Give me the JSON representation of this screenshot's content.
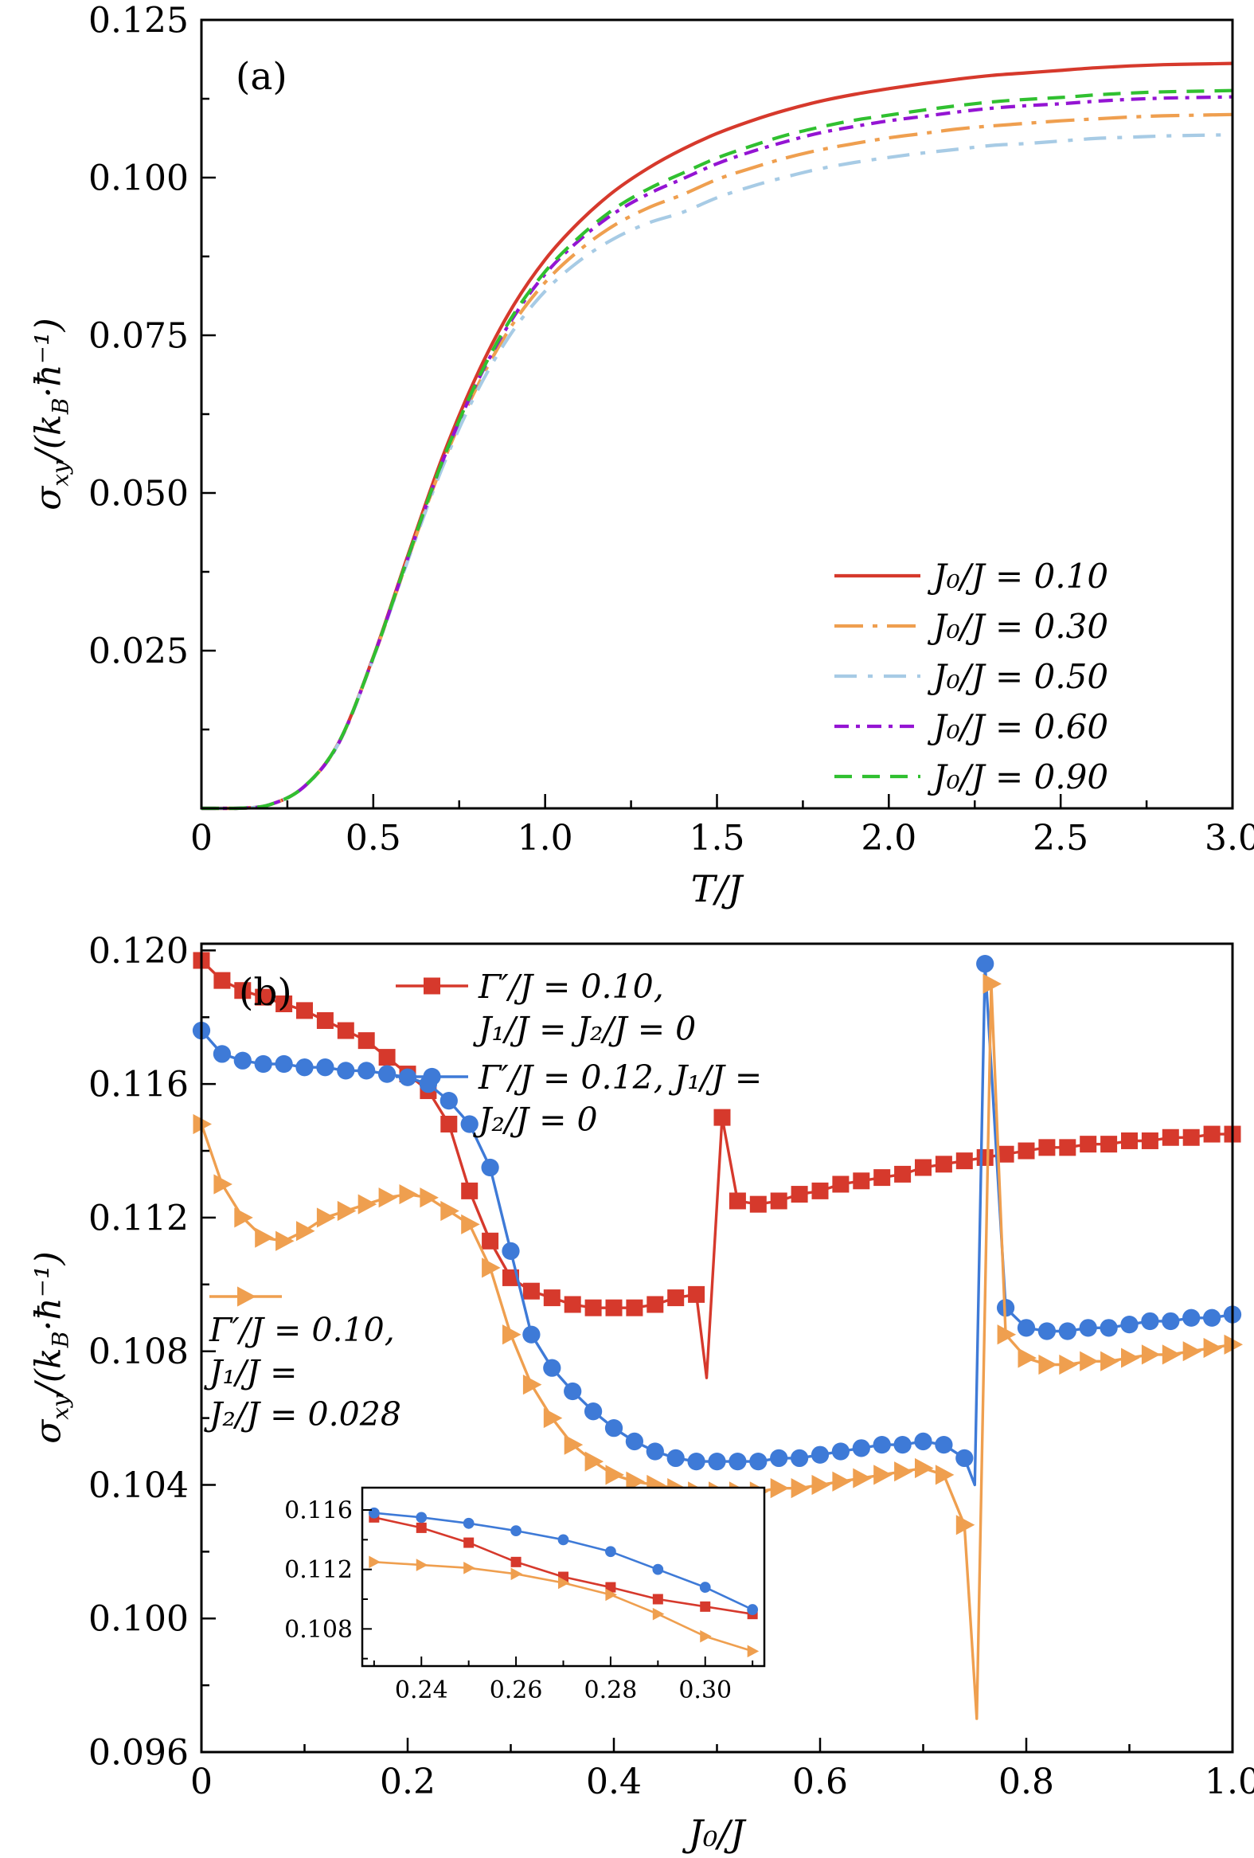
{
  "colors": {
    "red": "#d6392c",
    "orange": "#ef9f4f",
    "lightblue": "#a7cbe5",
    "purple": "#9414d3",
    "green": "#30c030",
    "blue": "#3e7ad7",
    "axis": "#000000",
    "background": "#ffffff"
  },
  "chart_data": [
    {
      "id": "panel-a",
      "type": "line",
      "panel_label": "(a)",
      "xlabel": "T/J",
      "ylabel_parts": {
        "p1": "σ",
        "p2": "xy",
        "p3": "/(k",
        "p4": "B",
        "p5": "·ħ⁻¹)"
      },
      "xlim": [
        0,
        3
      ],
      "ylim": [
        0,
        0.125
      ],
      "xticks": {
        "vals": [
          0,
          0.5,
          1,
          1.5,
          2,
          2.5,
          3
        ],
        "labels": [
          "0",
          "0.5",
          "1.0",
          "1.5",
          "2.0",
          "2.5",
          "3.0"
        ]
      },
      "yticks": {
        "vals": [
          0,
          0.025,
          0.05,
          0.075,
          0.1,
          0.125
        ],
        "labels": [
          "",
          "0.025",
          "0.050",
          "0.075",
          "0.100",
          "0.125"
        ]
      },
      "legend_position": "lower right",
      "x": [
        0,
        0.1,
        0.2,
        0.3,
        0.4,
        0.5,
        0.6,
        0.7,
        0.8,
        0.9,
        1.0,
        1.1,
        1.2,
        1.3,
        1.4,
        1.5,
        1.6,
        1.7,
        1.8,
        1.9,
        2.0,
        2.1,
        2.2,
        2.3,
        2.4,
        2.5,
        2.6,
        2.7,
        2.8,
        2.9,
        3.0
      ],
      "series": [
        {
          "name": "J0/J = 0.10",
          "label": "J₀/J = 0.10",
          "color": "red",
          "style": "solid",
          "y": [
            0,
            0,
            0.0006,
            0.0035,
            0.0105,
            0.024,
            0.04,
            0.0555,
            0.0685,
            0.079,
            0.087,
            0.093,
            0.0978,
            0.1015,
            0.1045,
            0.107,
            0.109,
            0.1107,
            0.1121,
            0.1132,
            0.1141,
            0.1149,
            0.1156,
            0.1162,
            0.1166,
            0.117,
            0.1174,
            0.1177,
            0.1179,
            0.118,
            0.1181
          ]
        },
        {
          "name": "J0/J = 0.30",
          "label": "J₀/J = 0.30",
          "color": "orange",
          "style": "dash-dot",
          "y": [
            0,
            0,
            0.0006,
            0.0035,
            0.0104,
            0.0238,
            0.0394,
            0.0544,
            0.0666,
            0.0763,
            0.0834,
            0.0885,
            0.0924,
            0.0952,
            0.0973,
            0.0997,
            0.1015,
            0.1031,
            0.1044,
            0.1054,
            0.1063,
            0.107,
            0.1077,
            0.1082,
            0.1086,
            0.109,
            0.1093,
            0.1096,
            0.1098,
            0.1099,
            0.11
          ]
        },
        {
          "name": "J0/J = 0.50",
          "label": "J₀/J = 0.50",
          "color": "lightblue",
          "style": "dash-dot",
          "y": [
            0,
            0,
            0.0006,
            0.0035,
            0.0104,
            0.0238,
            0.0392,
            0.0539,
            0.0659,
            0.0752,
            0.082,
            0.0868,
            0.0903,
            0.0928,
            0.0945,
            0.0968,
            0.0986,
            0.1001,
            0.1014,
            0.1024,
            0.1032,
            0.1039,
            0.1045,
            0.1051,
            0.1054,
            0.1058,
            0.1062,
            0.1064,
            0.1066,
            0.1067,
            0.1068
          ]
        },
        {
          "name": "J0/J = 0.60",
          "label": "J₀/J = 0.60",
          "color": "purple",
          "style": "dash-dot",
          "y": [
            0,
            0,
            0.0006,
            0.0035,
            0.0104,
            0.0239,
            0.0396,
            0.0548,
            0.0673,
            0.0772,
            0.0847,
            0.0901,
            0.0943,
            0.0974,
            0.0998,
            0.1022,
            0.1041,
            0.1057,
            0.1071,
            0.1081,
            0.109,
            0.1097,
            0.1104,
            0.111,
            0.1114,
            0.1117,
            0.1121,
            0.1124,
            0.1126,
            0.1127,
            0.1128
          ]
        },
        {
          "name": "J0/J = 0.90",
          "label": "J₀/J = 0.90",
          "color": "green",
          "style": "dashed",
          "y": [
            0,
            0,
            0.0006,
            0.0035,
            0.0105,
            0.0239,
            0.0397,
            0.0549,
            0.0675,
            0.0776,
            0.0851,
            0.0906,
            0.095,
            0.0982,
            0.1007,
            0.1031,
            0.105,
            0.1067,
            0.108,
            0.1091,
            0.1099,
            0.1107,
            0.1114,
            0.112,
            0.1124,
            0.1127,
            0.1131,
            0.1134,
            0.1136,
            0.1137,
            0.1138
          ]
        }
      ]
    },
    {
      "id": "panel-b",
      "type": "scatter-line",
      "panel_label": "(b)",
      "xlabel": "J₀/J",
      "ylabel_parts": {
        "p1": "σ",
        "p2": "xy",
        "p3": "/(k",
        "p4": "B",
        "p5": "·ħ⁻¹)"
      },
      "xlim": [
        0,
        1
      ],
      "ylim": [
        0.096,
        0.1202
      ],
      "xticks": {
        "vals": [
          0,
          0.2,
          0.4,
          0.6,
          0.8,
          1
        ],
        "labels": [
          "0",
          "0.2",
          "0.4",
          "0.6",
          "0.8",
          "1.0"
        ]
      },
      "yticks": {
        "vals": [
          0.096,
          0.1,
          0.104,
          0.108,
          0.112,
          0.116,
          0.12
        ],
        "labels": [
          "0.096",
          "0.100",
          "0.104",
          "0.108",
          "0.112",
          "0.116",
          "0.120"
        ]
      },
      "series": [
        {
          "name": "Γ′/J = 0.10, J1/J = J2/J = 0",
          "legend_lines": [
            "Γ′/J = 0.10,",
            "J₁/J = J₂/J = 0"
          ],
          "color": "red",
          "marker": "square",
          "no_marker": [
            0.49
          ],
          "x": [
            0,
            0.02,
            0.04,
            0.06,
            0.08,
            0.1,
            0.12,
            0.14,
            0.16,
            0.18,
            0.2,
            0.22,
            0.24,
            0.26,
            0.28,
            0.3,
            0.32,
            0.34,
            0.36,
            0.38,
            0.4,
            0.42,
            0.44,
            0.46,
            0.48,
            0.49,
            0.505,
            0.52,
            0.54,
            0.56,
            0.58,
            0.6,
            0.62,
            0.64,
            0.66,
            0.68,
            0.7,
            0.72,
            0.74,
            0.76,
            0.78,
            0.8,
            0.82,
            0.84,
            0.86,
            0.88,
            0.9,
            0.92,
            0.94,
            0.96,
            0.98,
            1
          ],
          "y": [
            0.1197,
            0.1191,
            0.1188,
            0.1186,
            0.1184,
            0.1182,
            0.1179,
            0.1176,
            0.1173,
            0.1168,
            0.1163,
            0.1158,
            0.1148,
            0.1128,
            0.1113,
            0.1102,
            0.1098,
            0.1096,
            0.1094,
            0.1093,
            0.1093,
            0.1093,
            0.1094,
            0.1096,
            0.1097,
            0.1072,
            0.115,
            0.1125,
            0.1124,
            0.1125,
            0.1127,
            0.1128,
            0.113,
            0.1131,
            0.1132,
            0.1133,
            0.1135,
            0.1136,
            0.1137,
            0.1138,
            0.1139,
            0.114,
            0.1141,
            0.1141,
            0.1142,
            0.1142,
            0.1143,
            0.1143,
            0.1144,
            0.1144,
            0.1145,
            0.1145
          ]
        },
        {
          "name": "Γ′/J = 0.12, J1/J = J2/J = 0",
          "legend_lines": [
            "Γ′/J = 0.12, J₁/J =",
            "J₂/J = 0"
          ],
          "color": "blue",
          "marker": "circle",
          "no_marker": [
            0.75
          ],
          "x": [
            0,
            0.02,
            0.04,
            0.06,
            0.08,
            0.1,
            0.12,
            0.14,
            0.16,
            0.18,
            0.2,
            0.22,
            0.24,
            0.26,
            0.28,
            0.3,
            0.32,
            0.34,
            0.36,
            0.38,
            0.4,
            0.42,
            0.44,
            0.46,
            0.48,
            0.5,
            0.52,
            0.54,
            0.56,
            0.58,
            0.6,
            0.62,
            0.64,
            0.66,
            0.68,
            0.7,
            0.72,
            0.74,
            0.75,
            0.76,
            0.78,
            0.8,
            0.82,
            0.84,
            0.86,
            0.88,
            0.9,
            0.92,
            0.94,
            0.96,
            0.98,
            1
          ],
          "y": [
            0.1176,
            0.1169,
            0.1167,
            0.1166,
            0.1166,
            0.1165,
            0.1165,
            0.1164,
            0.1164,
            0.1163,
            0.1162,
            0.116,
            0.1155,
            0.1148,
            0.1135,
            0.111,
            0.1085,
            0.1075,
            0.1068,
            0.1062,
            0.1057,
            0.1053,
            0.105,
            0.1048,
            0.1047,
            0.1047,
            0.1047,
            0.1047,
            0.1048,
            0.1048,
            0.1049,
            0.105,
            0.1051,
            0.1052,
            0.1052,
            0.1053,
            0.1052,
            0.1048,
            0.104,
            0.1196,
            0.1093,
            0.1087,
            0.1086,
            0.1086,
            0.1087,
            0.1087,
            0.1088,
            0.1089,
            0.1089,
            0.109,
            0.109,
            0.1091
          ]
        },
        {
          "name": "Γ′/J = 0.10, J1/J = J2/J = 0.028",
          "legend_lines": [
            "Γ′/J = 0.10,",
            "J₁/J =",
            "J₂/J = 0.028"
          ],
          "color": "orange",
          "marker": "triangle-right",
          "no_marker": [
            0.752
          ],
          "x": [
            0,
            0.02,
            0.04,
            0.06,
            0.08,
            0.1,
            0.12,
            0.14,
            0.16,
            0.18,
            0.2,
            0.22,
            0.24,
            0.26,
            0.28,
            0.3,
            0.32,
            0.34,
            0.36,
            0.38,
            0.4,
            0.42,
            0.44,
            0.46,
            0.48,
            0.5,
            0.52,
            0.54,
            0.56,
            0.58,
            0.6,
            0.62,
            0.64,
            0.66,
            0.68,
            0.7,
            0.72,
            0.74,
            0.752,
            0.766,
            0.78,
            0.8,
            0.82,
            0.84,
            0.86,
            0.88,
            0.9,
            0.92,
            0.94,
            0.96,
            0.98,
            1
          ],
          "y": [
            0.1148,
            0.113,
            0.112,
            0.1114,
            0.1113,
            0.1116,
            0.112,
            0.1122,
            0.1124,
            0.1126,
            0.1127,
            0.1126,
            0.1122,
            0.1118,
            0.1105,
            0.1085,
            0.107,
            0.106,
            0.1052,
            0.1047,
            0.1043,
            0.1041,
            0.104,
            0.1039,
            0.1038,
            0.1038,
            0.1038,
            0.1038,
            0.1039,
            0.1039,
            0.104,
            0.1041,
            0.1042,
            0.1043,
            0.1044,
            0.1045,
            0.1043,
            0.1028,
            0.097,
            0.119,
            0.1085,
            0.1078,
            0.1076,
            0.1076,
            0.1077,
            0.1077,
            0.1078,
            0.1079,
            0.1079,
            0.108,
            0.1081,
            0.1082
          ]
        }
      ]
    },
    {
      "id": "inset",
      "type": "scatter-line",
      "xlim": [
        0.2275,
        0.3125
      ],
      "ylim": [
        0.1055,
        0.1175
      ],
      "xticks": {
        "vals": [
          0.24,
          0.26,
          0.28,
          0.3
        ],
        "labels": [
          "0.24",
          "0.26",
          "0.28",
          "0.30"
        ]
      },
      "yticks": {
        "vals": [
          0.108,
          0.112,
          0.116
        ],
        "labels": [
          "0.108",
          "0.112",
          "0.116"
        ]
      },
      "x": [
        0.23,
        0.24,
        0.25,
        0.26,
        0.27,
        0.28,
        0.29,
        0.3,
        0.31
      ],
      "series": [
        {
          "name": "Γ′/J = 0.10, J1/J = J2/J = 0",
          "color": "red",
          "marker": "square",
          "y": [
            0.1155,
            0.1148,
            0.1138,
            0.1125,
            0.1115,
            0.1108,
            0.11,
            0.1095,
            0.109
          ]
        },
        {
          "name": "Γ′/J = 0.12, J1/J = J2/J = 0",
          "color": "blue",
          "marker": "circle",
          "y": [
            0.1158,
            0.1155,
            0.1151,
            0.1146,
            0.114,
            0.1132,
            0.112,
            0.1108,
            0.1093
          ]
        },
        {
          "name": "Γ′/J = 0.10, J1/J = J2/J = 0.028",
          "color": "orange",
          "marker": "triangle-right",
          "y": [
            0.1125,
            0.1123,
            0.1121,
            0.1117,
            0.1111,
            0.1103,
            0.109,
            0.1075,
            0.1065
          ]
        }
      ]
    }
  ]
}
